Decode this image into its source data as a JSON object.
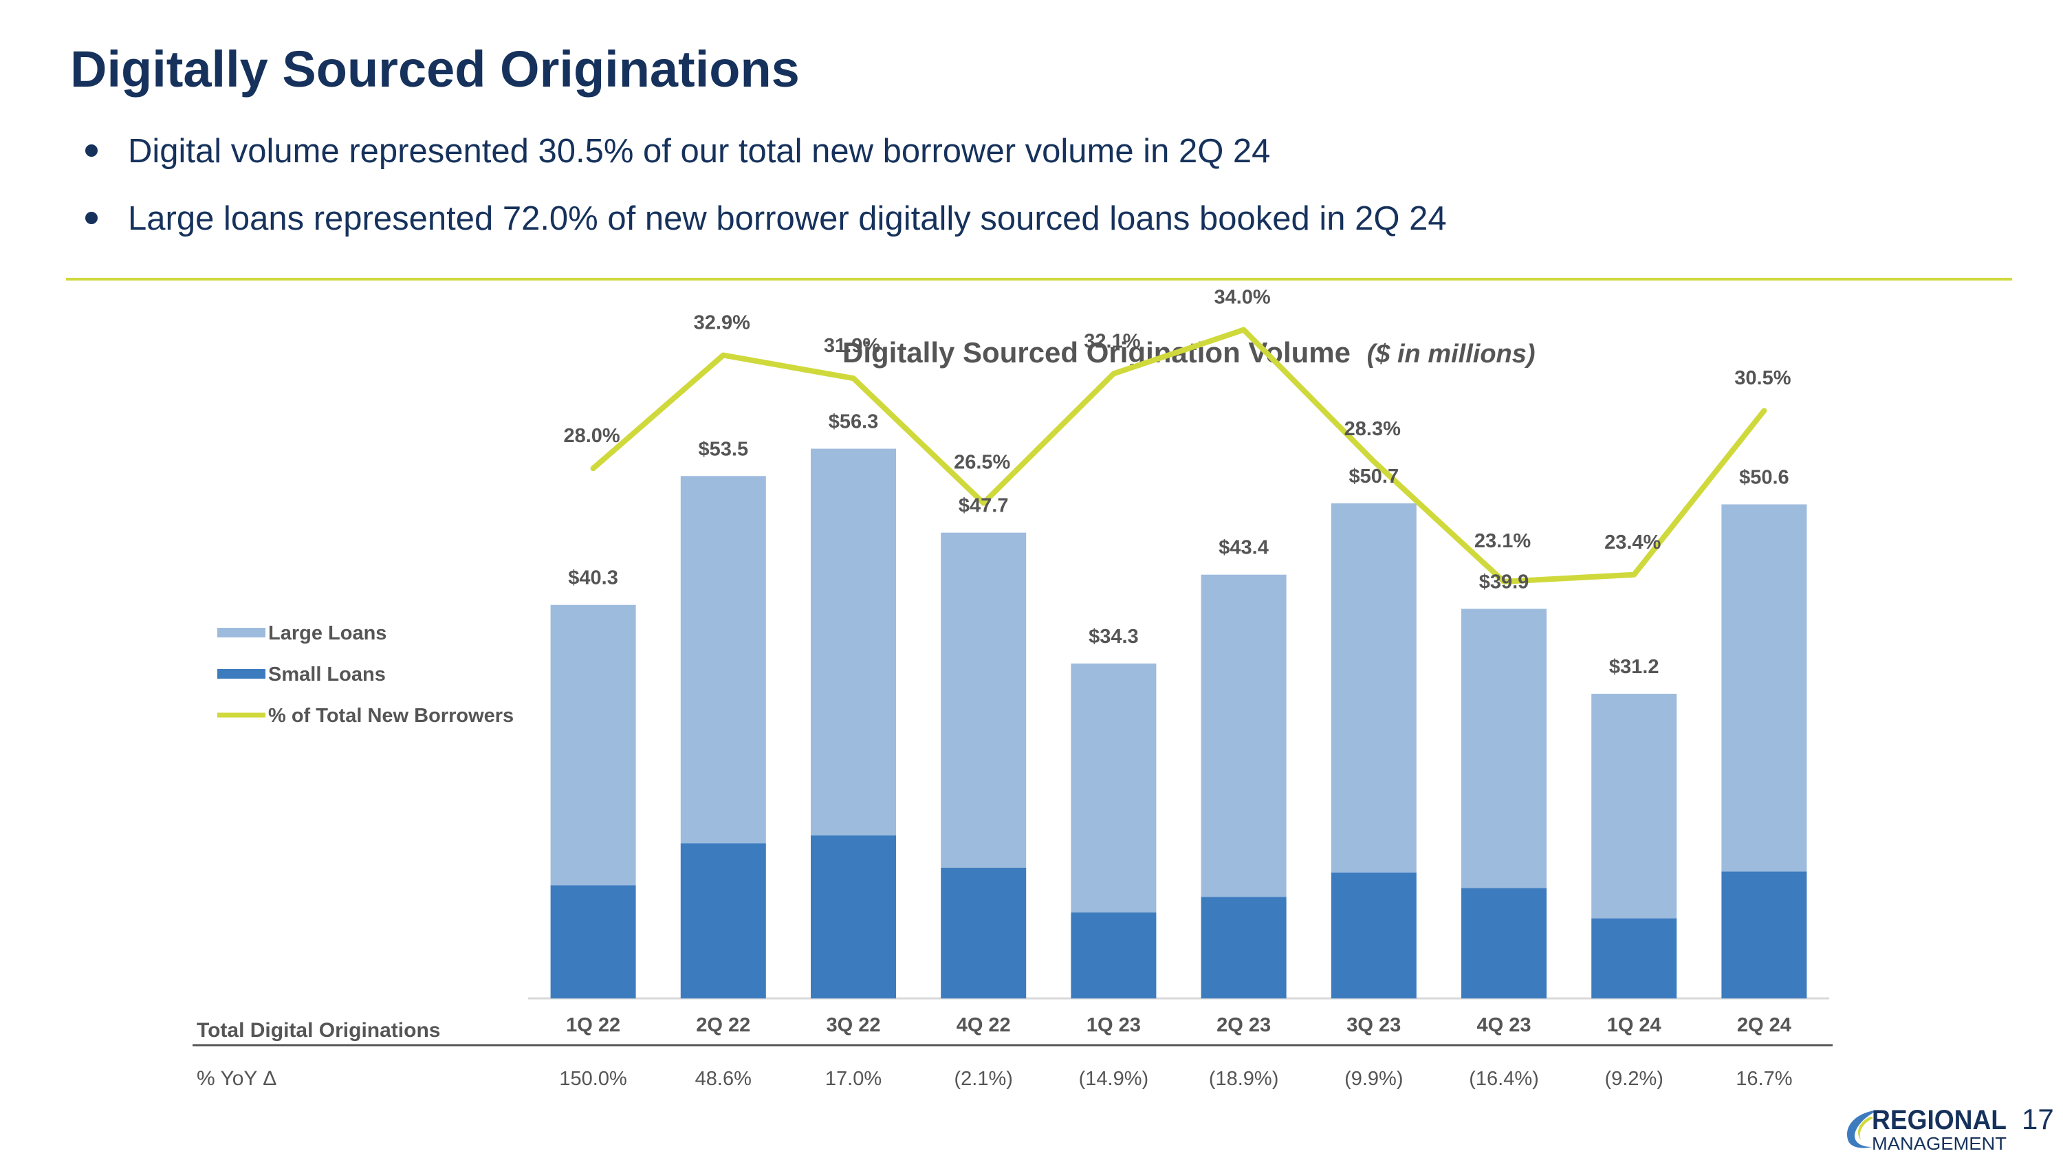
{
  "slide": {
    "title": "Digitally Sourced Originations",
    "bullets": [
      "Digital volume represented 30.5% of our total new borrower volume in 2Q 24",
      "Large loans represented 72.0% of new borrower digitally sourced loans booked in 2Q 24"
    ],
    "page_number": "17",
    "logo_text": "REGIONAL MANAGEMENT"
  },
  "colors": {
    "title": "#16325c",
    "divider": "#cfd93b",
    "large_loans": "#9dbbdd",
    "small_loans": "#3d7bbf",
    "line": "#cfd93b",
    "text": "#555555"
  },
  "chart_data": {
    "type": "bar",
    "stacked": true,
    "title": "Digitally Sourced Origination Volume",
    "subtitle": "($ in millions)",
    "categories": [
      "1Q 22",
      "2Q 22",
      "3Q 22",
      "4Q 22",
      "1Q 23",
      "2Q 23",
      "3Q 23",
      "4Q 23",
      "1Q 24",
      "2Q 24"
    ],
    "totals": [
      40.3,
      53.5,
      56.3,
      47.7,
      34.3,
      43.4,
      50.7,
      39.9,
      31.2,
      50.6
    ],
    "total_labels": [
      "$40.3",
      "$53.5",
      "$56.3",
      "$47.7",
      "$34.3",
      "$43.4",
      "$50.7",
      "$39.9",
      "$31.2",
      "$50.6"
    ],
    "series": [
      {
        "name": "Small Loans",
        "values": [
          11.6,
          15.9,
          16.7,
          13.4,
          8.8,
          10.4,
          12.9,
          11.3,
          8.2,
          13.0
        ]
      },
      {
        "name": "Large Loans",
        "values": [
          28.7,
          37.6,
          39.6,
          34.3,
          25.5,
          33.0,
          37.8,
          28.6,
          23.0,
          37.6
        ]
      }
    ],
    "line_series": {
      "name": "% of Total New Borrowers",
      "values": [
        28.0,
        32.9,
        31.9,
        26.5,
        32.1,
        34.0,
        28.3,
        23.1,
        23.4,
        30.5
      ],
      "labels": [
        "28.0%",
        "32.9%",
        "31.9%",
        "26.5%",
        "32.1%",
        "34.0%",
        "28.3%",
        "23.1%",
        "23.4%",
        "30.5%"
      ]
    },
    "legend_order": [
      "Large Loans",
      "Small Loans",
      "% of Total New Borrowers"
    ],
    "legend_position": "left",
    "row_label": "Total Digital Originations",
    "yoy_label": "% YoY Δ",
    "yoy": [
      "150.0%",
      "48.6%",
      "17.0%",
      "(2.1%)",
      "(14.9%)",
      "(18.9%)",
      "(9.9%)",
      "(16.4%)",
      "(9.2%)",
      "16.7%"
    ],
    "gridlines": false
  }
}
